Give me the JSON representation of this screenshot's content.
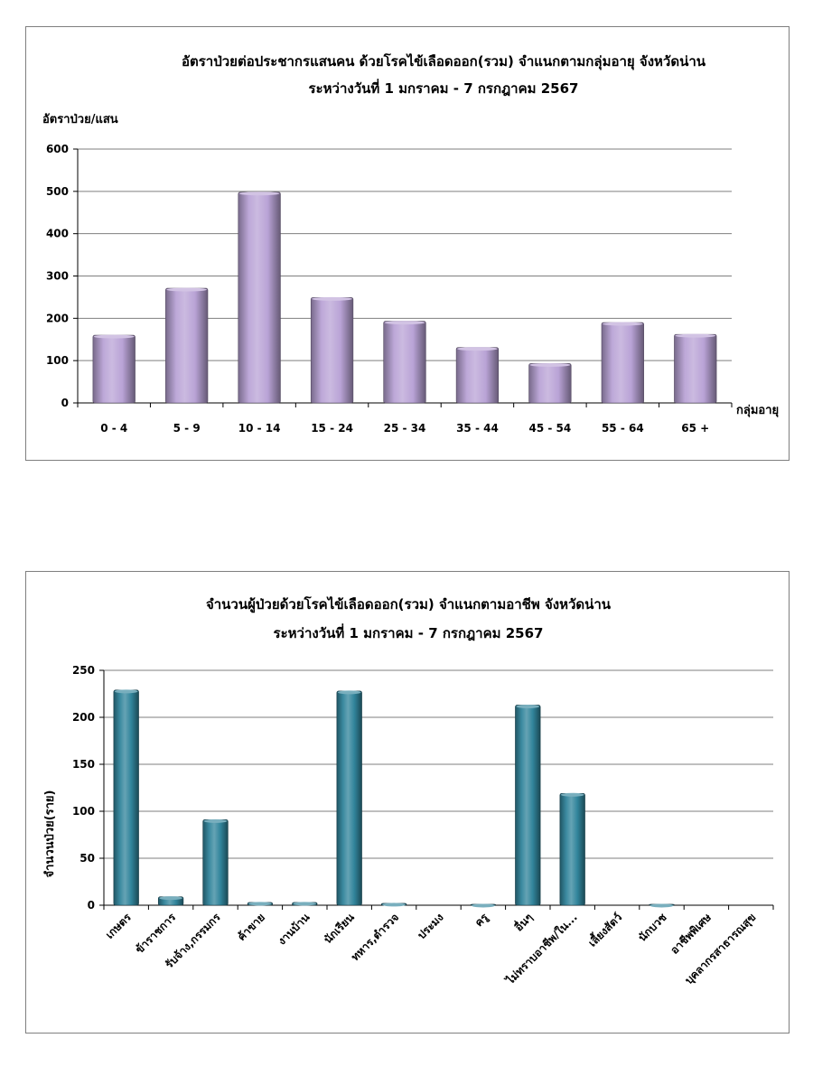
{
  "chart_data": [
    {
      "type": "bar",
      "title": "อัตราป่วยต่อประชากรแสนคน ด้วยโรคไข้เลือดออก(รวม) จำแนกตามกลุ่มอายุ จังหวัดน่าน",
      "subtitle": "ระหว่างวันที่ 1 มกราคม - 7 กรกฎาคม 2567",
      "ylabel": "อัตราป่วย/แสน",
      "xlabel": "กลุ่มอายุ",
      "ylim": [
        0,
        600
      ],
      "yticks": [
        0,
        100,
        200,
        300,
        400,
        500,
        600
      ],
      "grid": true,
      "legend": "none",
      "bar_color": "#b9a3d6",
      "categories": [
        "0 - 4",
        "5 - 9",
        "10 - 14",
        "15 - 24",
        "25 - 34",
        "35 - 44",
        "45 - 54",
        "55 - 64",
        "65 +"
      ],
      "values": [
        160,
        271,
        498,
        249,
        193,
        131,
        93,
        190,
        162
      ]
    },
    {
      "type": "bar",
      "title": "จำนวนผู้ป่วยด้วยโรคไข้เลือดออก(รวม) จำแนกตามอาชีพ จังหวัดน่าน",
      "subtitle": "ระหว่างวันที่ 1 มกราคม - 7 กรกฎาคม 2567",
      "ylabel": "จำนวนป่วย(ราย)",
      "xlabel": "",
      "ylim": [
        0,
        250
      ],
      "yticks": [
        0,
        50,
        100,
        150,
        200,
        250
      ],
      "grid": true,
      "legend": "none",
      "bar_color": "#31849b",
      "categories": [
        "เกษตร",
        "ข้าราชการ",
        "รับจ้าง,กรรมกร",
        "ค้าขาย",
        "งานบ้าน",
        "นักเรียน",
        "ทหาร,ตำรวจ",
        "ประมง",
        "ครู",
        "อื่นๆ",
        "ไม่ทราบอาชีพ/ใน...",
        "เลี้ยงสัตว์",
        "นักบวช",
        "อาชีพพิเศษ",
        "บุคลากรสาธารณสุข"
      ],
      "values": [
        229,
        9,
        91,
        3,
        3,
        228,
        2,
        0,
        1,
        213,
        119,
        0,
        1,
        0,
        0
      ]
    }
  ]
}
